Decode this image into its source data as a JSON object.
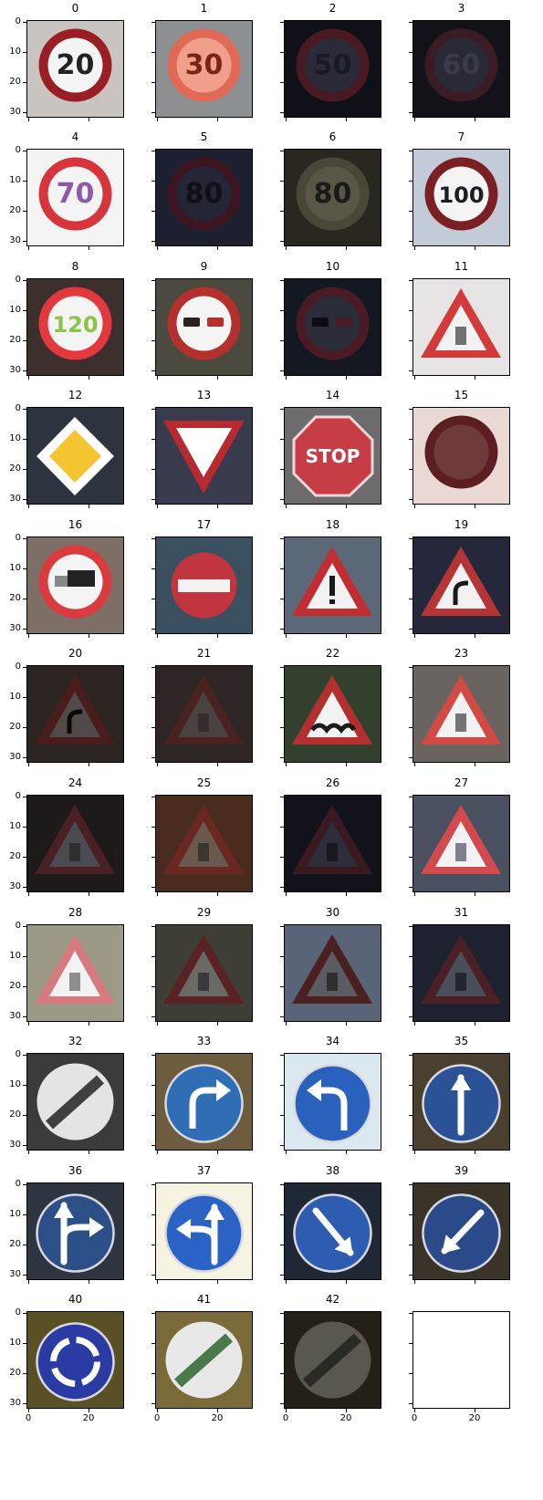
{
  "figure": {
    "y_tick_labels": [
      "0",
      "10",
      "20",
      "30"
    ],
    "x_tick_labels": [
      "0",
      "20"
    ],
    "panels": [
      {
        "title": "0",
        "kind": "circle-speed",
        "text": "20",
        "bg": "#c9c4c0",
        "fg": "#9a1f24",
        "glyph": "#222222"
      },
      {
        "title": "1",
        "kind": "circle-speed",
        "text": "30",
        "bg": "#8d9092",
        "fg": "#e06a55",
        "glyph": "#7a2418",
        "fill": "#f0a08a"
      },
      {
        "title": "2",
        "kind": "circle-speed",
        "text": "50",
        "bg": "#101018",
        "fg": "#4a1a22",
        "glyph": "#1a1a24",
        "fill": "#2a2a38"
      },
      {
        "title": "3",
        "kind": "circle-speed",
        "text": "60",
        "bg": "#121218",
        "fg": "#3a1d24",
        "glyph": "#3a3a4a",
        "fill": "#2a2a36"
      },
      {
        "title": "4",
        "kind": "circle-speed",
        "text": "70",
        "bg": "#f5f4f4",
        "fg": "#d6353b",
        "glyph": "#8c5aa8"
      },
      {
        "title": "5",
        "kind": "circle-speed",
        "text": "80",
        "bg": "#1d2030",
        "fg": "#3b1620",
        "glyph": "#0f0f18",
        "fill": "#242636"
      },
      {
        "title": "6",
        "kind": "circle-speed",
        "text": "80",
        "bg": "#2a2620",
        "fg": "#4a4638",
        "glyph": "#1c1a16",
        "fill": "#5a5646"
      },
      {
        "title": "7",
        "kind": "circle-speed",
        "text": "100",
        "bg": "#c3cbd8",
        "fg": "#7a1f22",
        "glyph": "#1c1c24"
      },
      {
        "title": "8",
        "kind": "circle-speed",
        "text": "120",
        "bg": "#3c2f2c",
        "fg": "#e2383e",
        "glyph": "#8ac34a"
      },
      {
        "title": "9",
        "kind": "circle-nopass",
        "bg": "#4a4a3e",
        "fg": "#b3302f",
        "glyph": "#2a2020"
      },
      {
        "title": "10",
        "kind": "circle-nopass",
        "bg": "#141820",
        "fg": "#4a1b24",
        "glyph": "#0c0c12",
        "fill": "#2a2c38"
      },
      {
        "title": "11",
        "kind": "triangle",
        "bg": "#e6e4e4",
        "fg": "#d23b3a",
        "glyph": "#1a1a1a"
      },
      {
        "title": "12",
        "kind": "diamond",
        "bg": "#2e3340",
        "fg": "#ffffff",
        "glyph": "#f5c431"
      },
      {
        "title": "13",
        "kind": "yield",
        "bg": "#373b4c",
        "fg": "#b72a30",
        "glyph": "#ffffff"
      },
      {
        "title": "14",
        "kind": "stop",
        "text": "STOP",
        "bg": "#6e6b6c",
        "fg": "#c73d45",
        "glyph": "#ffffff"
      },
      {
        "title": "15",
        "kind": "circle-plain",
        "bg": "#ead9d2",
        "fg": "#5c1e22",
        "fill": "#6e3a3a"
      },
      {
        "title": "16",
        "kind": "circle-truck",
        "bg": "#7d6f66",
        "fg": "#d93b3f",
        "glyph": "#222222"
      },
      {
        "title": "17",
        "kind": "noentry",
        "bg": "#3a5060",
        "fg": "#c0353e",
        "glyph": "#f3f3f3"
      },
      {
        "title": "18",
        "kind": "triangle-excl",
        "bg": "#5a6878",
        "fg": "#c12d31",
        "glyph": "#1a1a1a"
      },
      {
        "title": "19",
        "kind": "triangle-curve",
        "bg": "#24283a",
        "fg": "#b53435",
        "glyph": "#1a1a1a"
      },
      {
        "title": "20",
        "kind": "triangle-curve",
        "bg": "#2c2420",
        "fg": "#4a1d1c",
        "glyph": "#0a0a0a",
        "fill": "#504a48"
      },
      {
        "title": "21",
        "kind": "triangle",
        "bg": "#2e2624",
        "fg": "#4a2222",
        "glyph": "#2a2020",
        "fill": "#4a4240"
      },
      {
        "title": "22",
        "kind": "triangle-bumps",
        "bg": "#34402e",
        "fg": "#b3302f",
        "glyph": "#1a1a1a"
      },
      {
        "title": "23",
        "kind": "triangle",
        "bg": "#6a6460",
        "fg": "#d14a44",
        "glyph": "#222222"
      },
      {
        "title": "24",
        "kind": "triangle",
        "bg": "#1f1a1a",
        "fg": "#4a2024",
        "glyph": "#1e1e1e",
        "fill": "#4a4a50"
      },
      {
        "title": "25",
        "kind": "triangle",
        "bg": "#4a2c1e",
        "fg": "#6a2820",
        "glyph": "#1e1e1e",
        "fill": "#6a5a4e"
      },
      {
        "title": "26",
        "kind": "triangle",
        "bg": "#12121a",
        "fg": "#3a1a20",
        "glyph": "#0a0a10",
        "fill": "#2e2e3a"
      },
      {
        "title": "27",
        "kind": "triangle",
        "bg": "#4a5060",
        "fg": "#d14a4e",
        "glyph": "#333344"
      },
      {
        "title": "28",
        "kind": "triangle",
        "bg": "#9c9a86",
        "fg": "#d67a80",
        "glyph": "#4a4a4a"
      },
      {
        "title": "29",
        "kind": "triangle",
        "bg": "#3e3e36",
        "fg": "#5a2224",
        "glyph": "#1a1a1a",
        "fill": "#6a6a64"
      },
      {
        "title": "30",
        "kind": "triangle",
        "bg": "#5a6478",
        "fg": "#4a2020",
        "glyph": "#101010",
        "fill": "#5a5c62"
      },
      {
        "title": "31",
        "kind": "triangle",
        "bg": "#1e2230",
        "fg": "#4a2024",
        "glyph": "#0a0a12",
        "fill": "#4a4e5a"
      },
      {
        "title": "32",
        "kind": "circle-end",
        "bg": "#3b3b3e",
        "fg": "#e4e4e4",
        "glyph": "#404040"
      },
      {
        "title": "33",
        "kind": "circle-blue-right",
        "bg": "#6e5c3e",
        "fg": "#2f6db4",
        "glyph": "#ffffff"
      },
      {
        "title": "34",
        "kind": "circle-blue-left",
        "bg": "#dce8f0",
        "fg": "#2a61bd",
        "glyph": "#ffffff"
      },
      {
        "title": "35",
        "kind": "circle-blue-up",
        "bg": "#4a4030",
        "fg": "#2b5196",
        "glyph": "#ffffff"
      },
      {
        "title": "36",
        "kind": "circle-blue-upright",
        "bg": "#2e3440",
        "fg": "#2c4f88",
        "glyph": "#ffffff"
      },
      {
        "title": "37",
        "kind": "circle-blue-upleft",
        "bg": "#f6f3e0",
        "fg": "#2b63c4",
        "glyph": "#ffffff"
      },
      {
        "title": "38",
        "kind": "circle-blue-downright",
        "bg": "#202836",
        "fg": "#2e5cb0",
        "glyph": "#ffffff"
      },
      {
        "title": "39",
        "kind": "circle-blue-downleft",
        "bg": "#3a3428",
        "fg": "#2a4a8a",
        "glyph": "#ffffff"
      },
      {
        "title": "40",
        "kind": "circle-blue-round",
        "bg": "#5a5026",
        "fg": "#2a3ca4",
        "glyph": "#ffffff"
      },
      {
        "title": "41",
        "kind": "circle-end",
        "bg": "#7a6a3a",
        "fg": "#e8e8e8",
        "glyph": "#4a7a4a"
      },
      {
        "title": "42",
        "kind": "circle-end",
        "bg": "#242018",
        "fg": "#5a5650",
        "glyph": "#2a2a24"
      },
      {
        "title": "",
        "kind": "empty",
        "bg": "#ffffff"
      }
    ]
  }
}
